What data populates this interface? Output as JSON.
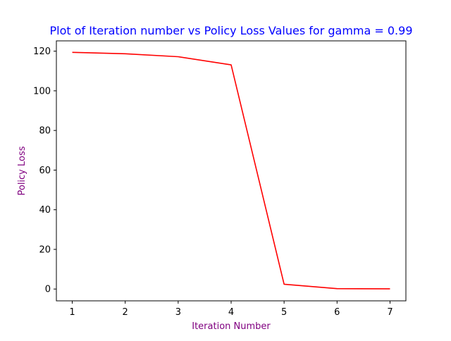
{
  "chart_data": {
    "type": "line",
    "title": "Plot of Iteration number vs Policy Loss Values for gamma = 0.99",
    "xlabel": "Iteration Number",
    "ylabel": "Policy Loss",
    "xlim": [
      0.7,
      7.3
    ],
    "ylim": [
      -5.96,
      125.2
    ],
    "xticks": [
      1,
      2,
      3,
      4,
      5,
      6,
      7
    ],
    "yticks": [
      0,
      20,
      40,
      60,
      80,
      100,
      120
    ],
    "grid": false,
    "legend": "none",
    "colors": {
      "title": "#0000ff",
      "axis_label": "#800080",
      "series": "#ff0000",
      "axes": "#000000"
    },
    "series": [
      {
        "x": [
          1,
          2,
          3,
          4,
          5,
          6,
          7
        ],
        "values": [
          119.4,
          118.7,
          117.2,
          113.1,
          2.4,
          0.2,
          0.1
        ]
      }
    ]
  }
}
